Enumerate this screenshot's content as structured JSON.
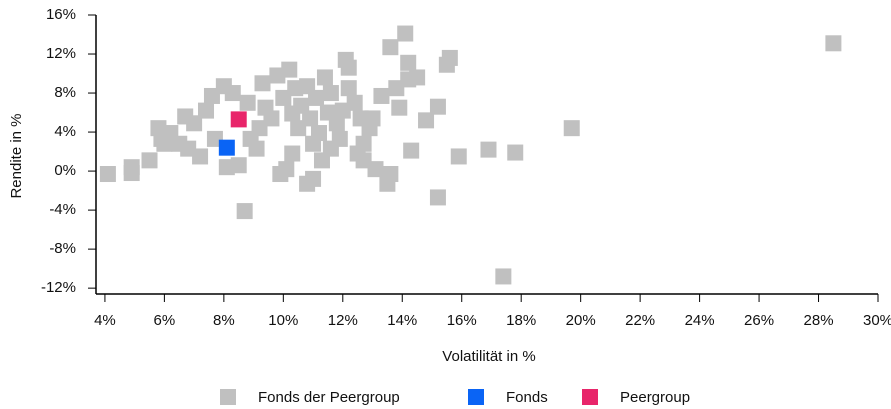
{
  "chart_data": {
    "type": "scatter",
    "x_label": "Volatilität in %",
    "y_label": "Rendite in %",
    "xlim": [
      3.7,
      30
    ],
    "ylim": [
      -12.6,
      16
    ],
    "xticks": [
      {
        "value": 4,
        "label": "4%"
      },
      {
        "value": 6,
        "label": "6%"
      },
      {
        "value": 8,
        "label": "8%"
      },
      {
        "value": 10,
        "label": "10%"
      },
      {
        "value": 12,
        "label": "12%"
      },
      {
        "value": 14,
        "label": "14%"
      },
      {
        "value": 16,
        "label": "16%"
      },
      {
        "value": 18,
        "label": "18%"
      },
      {
        "value": 20,
        "label": "20%"
      },
      {
        "value": 22,
        "label": "22%"
      },
      {
        "value": 24,
        "label": "24%"
      },
      {
        "value": 26,
        "label": "26%"
      },
      {
        "value": 28,
        "label": "28%"
      },
      {
        "value": 30,
        "label": "30%"
      }
    ],
    "yticks": [
      {
        "value": -12,
        "label": "-12%"
      },
      {
        "value": -8,
        "label": "-8%"
      },
      {
        "value": -4,
        "label": "-4%"
      },
      {
        "value": 0,
        "label": "0%"
      },
      {
        "value": 4,
        "label": "4%"
      },
      {
        "value": 8,
        "label": "8%"
      },
      {
        "value": 12,
        "label": "12%"
      },
      {
        "value": 16,
        "label": "16%"
      }
    ],
    "legend": "bottom",
    "series": [
      {
        "name": "Fonds der Peergroup",
        "color": "#c0c0c0",
        "x": [
          4.1,
          4.9,
          4.9,
          5.5,
          5.8,
          5.9,
          6.0,
          6.2,
          6.5,
          6.7,
          6.8,
          7.0,
          7.2,
          7.4,
          7.6,
          7.7,
          8.0,
          8.1,
          8.3,
          8.5,
          8.7,
          8.8,
          8.9,
          9.1,
          9.2,
          9.3,
          9.4,
          9.6,
          9.8,
          9.9,
          10.0,
          10.1,
          10.2,
          10.3,
          10.3,
          10.4,
          10.5,
          10.6,
          10.8,
          10.8,
          10.9,
          11.0,
          11.0,
          11.1,
          11.2,
          11.3,
          11.4,
          11.5,
          11.6,
          11.6,
          11.8,
          11.9,
          12.0,
          12.1,
          12.2,
          12.2,
          12.4,
          12.5,
          12.6,
          12.7,
          12.7,
          12.9,
          13.0,
          13.1,
          13.3,
          13.5,
          13.6,
          13.6,
          13.8,
          13.9,
          14.1,
          14.2,
          14.2,
          14.3,
          14.5,
          14.8,
          15.2,
          15.2,
          15.5,
          15.6,
          15.9,
          16.9,
          17.4,
          17.8,
          19.7,
          28.5
        ],
        "y": [
          -0.3,
          0.4,
          -0.2,
          1.1,
          4.4,
          3.3,
          2.8,
          3.9,
          2.8,
          5.6,
          2.3,
          4.9,
          1.5,
          6.2,
          7.7,
          3.3,
          8.7,
          0.4,
          8.0,
          0.6,
          -4.1,
          7.0,
          3.3,
          2.3,
          4.4,
          9.0,
          6.5,
          5.4,
          9.8,
          -0.3,
          7.5,
          0.2,
          10.4,
          5.9,
          1.8,
          8.5,
          4.4,
          6.7,
          8.7,
          -1.3,
          5.4,
          2.8,
          -0.8,
          7.5,
          3.9,
          1.1,
          9.6,
          6.0,
          2.3,
          8.0,
          4.9,
          3.3,
          6.2,
          11.4,
          10.6,
          8.5,
          7.0,
          1.8,
          5.4,
          1.1,
          2.8,
          4.4,
          5.4,
          0.2,
          7.7,
          -1.3,
          12.7,
          -0.3,
          8.5,
          6.5,
          14.1,
          11.1,
          9.4,
          2.1,
          9.6,
          5.2,
          -2.7,
          6.6,
          10.9,
          11.6,
          1.5,
          2.2,
          -10.8,
          1.9,
          4.4,
          13.1
        ]
      },
      {
        "name": "Fonds",
        "color": "#0a64f5",
        "x": [
          8.1
        ],
        "y": [
          2.4
        ]
      },
      {
        "name": "Peergroup",
        "color": "#e8256a",
        "x": [
          8.5
        ],
        "y": [
          5.3
        ]
      }
    ]
  }
}
